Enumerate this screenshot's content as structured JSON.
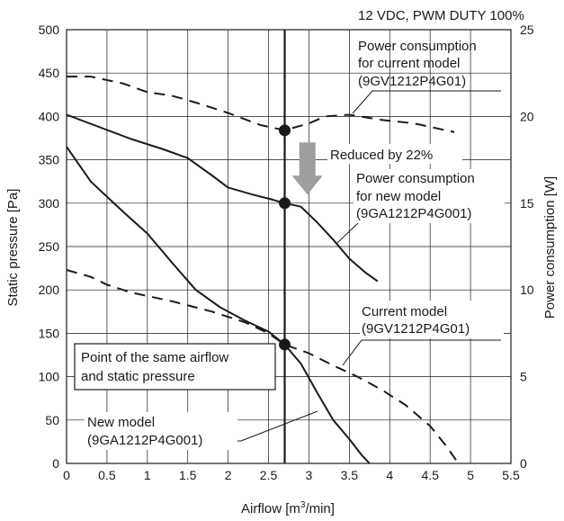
{
  "chart_data": {
    "type": "line",
    "header": "12 VDC, PWM DUTY 100%",
    "xlabel_parts": [
      "Airflow [m",
      "3",
      "/min]"
    ],
    "ylabel": "Static pressure [Pa]",
    "y2label": "Power consumption [W]",
    "xlim": [
      0,
      5.5
    ],
    "ylim": [
      0,
      500
    ],
    "y2lim": [
      0,
      25
    ],
    "x_ticks": [
      "0",
      "0.5",
      "1",
      "1.5",
      "2",
      "2.5",
      "3",
      "3.5",
      "4",
      "4.5",
      "5",
      "5.5"
    ],
    "y_ticks": [
      "0",
      "50",
      "100",
      "150",
      "200",
      "250",
      "300",
      "350",
      "400",
      "450",
      "500"
    ],
    "y2_ticks": [
      "0",
      "5",
      "10",
      "15",
      "20",
      "25"
    ],
    "grid": true,
    "series": [
      {
        "id": "new-model-pq",
        "axis": "left",
        "style": "solid",
        "points": [
          [
            0,
            365
          ],
          [
            0.3,
            325
          ],
          [
            0.7,
            290
          ],
          [
            1.0,
            265
          ],
          [
            1.3,
            232
          ],
          [
            1.6,
            200
          ],
          [
            1.9,
            180
          ],
          [
            2.2,
            165
          ],
          [
            2.5,
            152
          ],
          [
            2.7,
            137
          ],
          [
            2.9,
            115
          ],
          [
            3.1,
            82
          ],
          [
            3.3,
            50
          ],
          [
            3.5,
            28
          ],
          [
            3.65,
            10
          ],
          [
            3.75,
            0
          ]
        ]
      },
      {
        "id": "current-model-pq",
        "axis": "left",
        "style": "dashed",
        "points": [
          [
            0,
            223
          ],
          [
            0.3,
            215
          ],
          [
            0.5,
            206
          ],
          [
            0.8,
            197
          ],
          [
            1.3,
            187
          ],
          [
            1.8,
            175
          ],
          [
            2.2,
            163
          ],
          [
            2.5,
            150
          ],
          [
            2.7,
            137
          ],
          [
            3.0,
            127
          ],
          [
            3.3,
            113
          ],
          [
            3.6,
            100
          ],
          [
            3.9,
            85
          ],
          [
            4.2,
            67
          ],
          [
            4.5,
            43
          ],
          [
            4.7,
            20
          ],
          [
            4.85,
            0
          ]
        ]
      },
      {
        "id": "power-current-model",
        "axis": "right",
        "style": "dashed",
        "points": [
          [
            0,
            22.3
          ],
          [
            0.3,
            22.3
          ],
          [
            0.7,
            21.9
          ],
          [
            1.0,
            21.4
          ],
          [
            1.3,
            21.2
          ],
          [
            1.6,
            20.8
          ],
          [
            2.0,
            20.2
          ],
          [
            2.4,
            19.5
          ],
          [
            2.7,
            19.2
          ],
          [
            3.0,
            19.6
          ],
          [
            3.2,
            20.0
          ],
          [
            3.5,
            20.1
          ],
          [
            3.9,
            19.8
          ],
          [
            4.3,
            19.6
          ],
          [
            4.8,
            19.1
          ]
        ]
      },
      {
        "id": "power-new-model",
        "axis": "right",
        "style": "solid",
        "points": [
          [
            0,
            20.1
          ],
          [
            0.4,
            19.4
          ],
          [
            0.8,
            18.7
          ],
          [
            1.2,
            18.1
          ],
          [
            1.5,
            17.6
          ],
          [
            1.8,
            16.6
          ],
          [
            2.0,
            15.9
          ],
          [
            2.3,
            15.5
          ],
          [
            2.55,
            15.2
          ],
          [
            2.7,
            15.0
          ],
          [
            2.9,
            14.8
          ],
          [
            3.1,
            13.9
          ],
          [
            3.3,
            12.9
          ],
          [
            3.5,
            11.8
          ],
          [
            3.7,
            11.0
          ],
          [
            3.85,
            10.5
          ]
        ]
      }
    ],
    "markers": [
      {
        "x": 2.7,
        "y": 137,
        "axis": "left"
      },
      {
        "x": 2.7,
        "y": 19.2,
        "axis": "right"
      },
      {
        "x": 2.7,
        "y": 15.0,
        "axis": "right"
      }
    ],
    "vertical_line_x": 2.7,
    "arrow": {
      "x": 2.98,
      "from": 18.5,
      "to": 15.5,
      "axis": "right",
      "color": "#9e9e9e"
    },
    "annotations": {
      "power_current": [
        "Power consumption",
        "for current model",
        "(9GV1212P4G01)"
      ],
      "reduced": "Reduced by 22%",
      "power_new": [
        "Power consumption",
        "for new model",
        "(9GA1212P4G001)"
      ],
      "current_model": [
        "Current model",
        "(9GV1212P4G01)"
      ],
      "same_point": [
        "Point of the same airflow",
        "and static pressure"
      ],
      "new_model": [
        "New model",
        "(9GA1212P4G001)"
      ]
    }
  }
}
